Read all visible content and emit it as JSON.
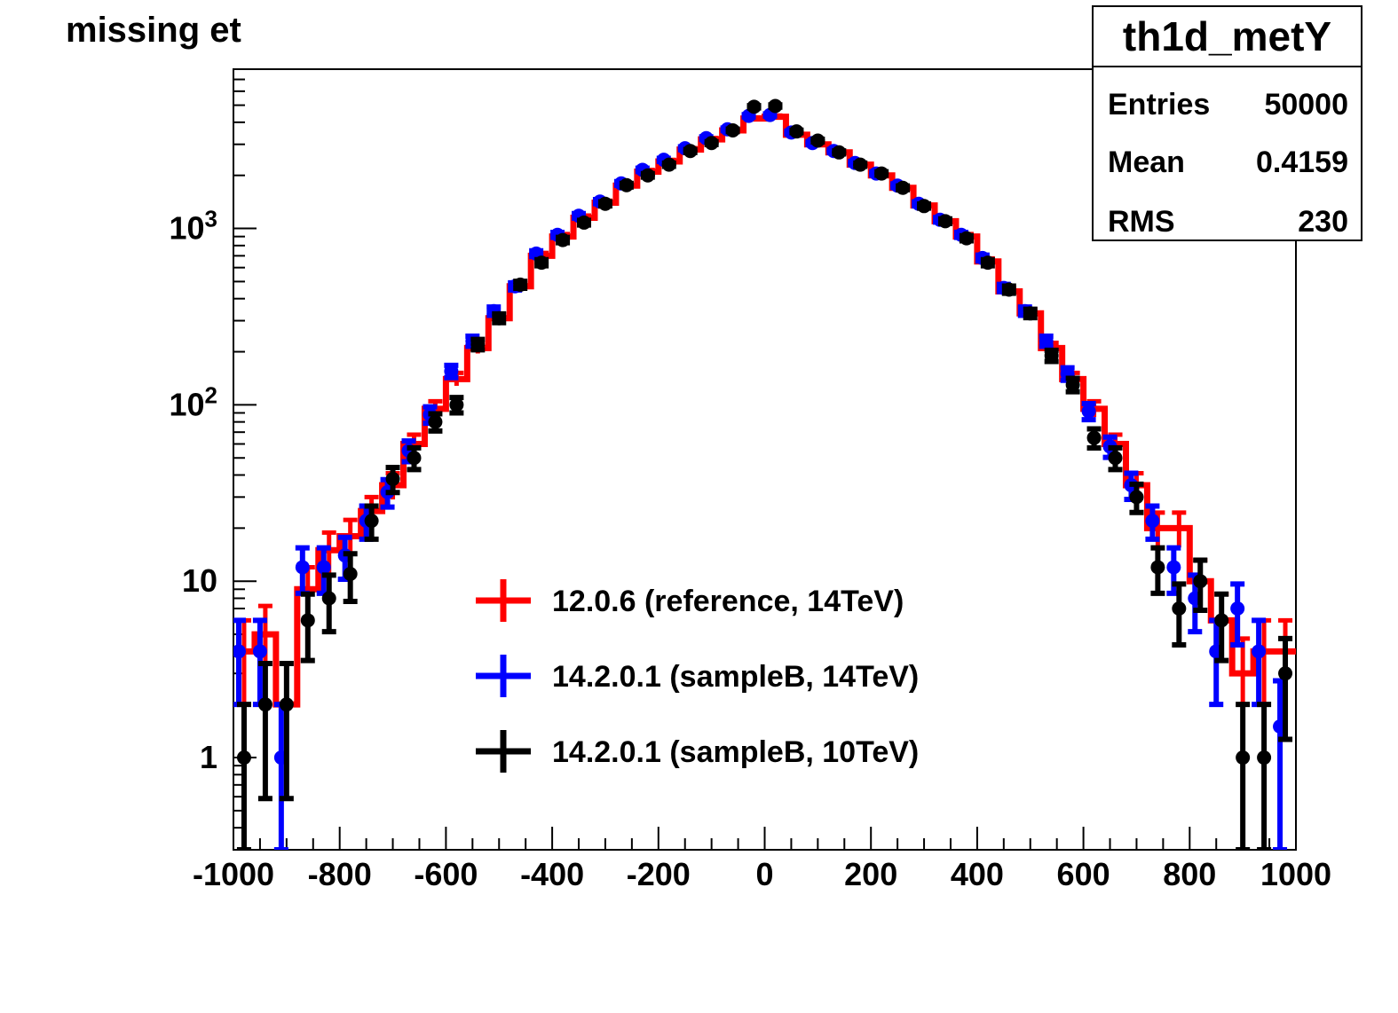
{
  "chart_data": {
    "type": "histogram",
    "title": "missing et",
    "xlabel": "",
    "ylabel": "",
    "xlim": [
      -1000,
      1000
    ],
    "ylim": [
      0.3,
      8000
    ],
    "yscale": "log",
    "x_ticks": [
      "-1000",
      "-800",
      "-600",
      "-400",
      "-200",
      "0",
      "200",
      "400",
      "600",
      "800",
      "1000"
    ],
    "y_ticks": [
      {
        "value": 1,
        "base": "1",
        "exp": ""
      },
      {
        "value": 10,
        "base": "10",
        "exp": ""
      },
      {
        "value": 100,
        "base": "10",
        "exp": "2"
      },
      {
        "value": 1000,
        "base": "10",
        "exp": "3"
      }
    ],
    "legend_position": "center",
    "stats_box": {
      "name": "th1d_metY",
      "entries_label": "Entries",
      "entries": "50000",
      "mean_label": "Mean",
      "mean": "0.4159",
      "rms_label": "RMS",
      "rms": "230"
    },
    "series": [
      {
        "name": "12.0.6 (reference, 14TeV)",
        "color": "#ff0000",
        "style": "step",
        "x": [
          -980,
          -940,
          -900,
          -860,
          -820,
          -780,
          -740,
          -700,
          -660,
          -620,
          -580,
          -540,
          -500,
          -460,
          -420,
          -380,
          -340,
          -300,
          -260,
          -220,
          -180,
          -140,
          -100,
          -60,
          -20,
          20,
          60,
          100,
          140,
          180,
          220,
          260,
          300,
          340,
          380,
          420,
          460,
          500,
          540,
          580,
          620,
          660,
          700,
          740,
          780,
          820,
          860,
          900,
          940,
          980
        ],
        "values": [
          4,
          5,
          2,
          9,
          15,
          18,
          25,
          35,
          60,
          95,
          140,
          210,
          310,
          470,
          700,
          900,
          1150,
          1400,
          1750,
          2100,
          2400,
          2800,
          3200,
          3600,
          4200,
          4300,
          3400,
          3000,
          2700,
          2300,
          2000,
          1700,
          1350,
          1100,
          900,
          650,
          440,
          330,
          210,
          140,
          95,
          60,
          35,
          20,
          20,
          10,
          6,
          3,
          4,
          4
        ]
      },
      {
        "name": "14.2.0.1 (sampleB, 14TeV)",
        "color": "#0000ff",
        "style": "errorbar",
        "x": [
          -990,
          -950,
          -910,
          -870,
          -830,
          -790,
          -750,
          -710,
          -670,
          -630,
          -590,
          -550,
          -510,
          -470,
          -430,
          -390,
          -350,
          -310,
          -270,
          -230,
          -190,
          -150,
          -110,
          -70,
          -30,
          10,
          50,
          90,
          130,
          170,
          210,
          250,
          290,
          330,
          370,
          410,
          450,
          490,
          530,
          570,
          610,
          650,
          690,
          730,
          770,
          810,
          850,
          890,
          930,
          970
        ],
        "values": [
          4,
          4,
          1,
          12,
          12,
          14,
          22,
          32,
          55,
          88,
          155,
          230,
          340,
          470,
          720,
          920,
          1180,
          1420,
          1800,
          2150,
          2450,
          2850,
          3250,
          3650,
          4350,
          4400,
          3500,
          3050,
          2750,
          2350,
          2050,
          1750,
          1380,
          1120,
          920,
          680,
          460,
          340,
          230,
          150,
          92,
          58,
          35,
          22,
          12,
          8,
          4,
          7,
          4,
          1.5
        ]
      },
      {
        "name": "14.2.0.1 (sampleB, 10TeV)",
        "color": "#000000",
        "style": "errorbar",
        "x": [
          -980,
          -940,
          -900,
          -860,
          -820,
          -780,
          -740,
          -700,
          -660,
          -620,
          -580,
          -540,
          -500,
          -460,
          -420,
          -380,
          -340,
          -300,
          -260,
          -220,
          -180,
          -140,
          -100,
          -60,
          -20,
          20,
          60,
          100,
          140,
          180,
          220,
          260,
          300,
          340,
          380,
          420,
          460,
          500,
          540,
          580,
          620,
          660,
          700,
          740,
          780,
          820,
          860,
          900,
          940,
          980
        ],
        "values": [
          1,
          2,
          2,
          6,
          8,
          11,
          22,
          38,
          50,
          80,
          100,
          220,
          310,
          480,
          640,
          860,
          1080,
          1380,
          1760,
          2000,
          2300,
          2750,
          3050,
          3600,
          4900,
          4950,
          3550,
          3150,
          2700,
          2300,
          2050,
          1700,
          1340,
          1100,
          880,
          640,
          450,
          330,
          190,
          130,
          65,
          50,
          30,
          12,
          7,
          10,
          6,
          1,
          1,
          3
        ]
      }
    ]
  }
}
